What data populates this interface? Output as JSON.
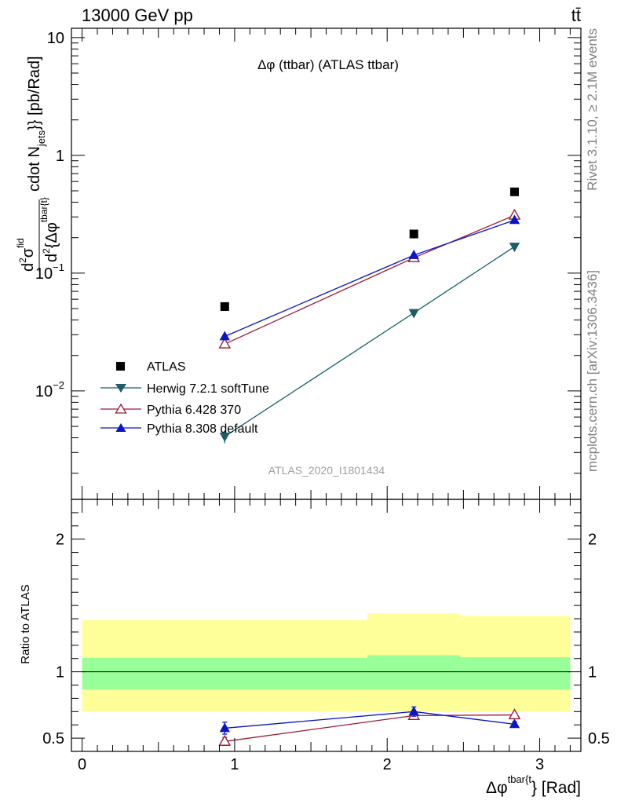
{
  "header": {
    "left": "13000 GeV pp",
    "right": "tt̄"
  },
  "side_labels": {
    "rivet": "Rivet 3.1.10, ≥ 2.1M events",
    "mcplots": "mcplots.cern.ch [arXiv:1306.3436]"
  },
  "watermark": "ATLAS_2020_I1801434",
  "chart_data": [
    {
      "type": "scatter",
      "panel": "main",
      "title": "Δφ (ttbar) (ATLAS ttbar)",
      "ylabel": {
        "d1": "d",
        "sup1": "2",
        "sigma": "σ",
        "sup2": "fid",
        "d2": "d",
        "sup3": "2",
        "den": "{Δφ",
        "sup4": "tbar{t}",
        "mid": "cdot N",
        "sub": "jets",
        "end": "}} [pb/Rad]"
      },
      "yscale": "log",
      "ylim": [
        0.0012,
        12
      ],
      "xlim": [
        -0.07,
        3.27
      ],
      "ytick_labels": [
        {
          "v": 10,
          "base": "10",
          "exp": ""
        },
        {
          "v": 1,
          "base": "1",
          "exp": ""
        },
        {
          "v": 0.1,
          "base": "10",
          "exp": "−1"
        },
        {
          "v": 0.01,
          "base": "10",
          "exp": "−2"
        }
      ],
      "legend": {
        "placement": "bottom-left"
      },
      "series": [
        {
          "name": "ATLAS",
          "color": "#000000",
          "marker": "square",
          "x": [
            0.935,
            2.175,
            2.835
          ],
          "y": [
            0.052,
            0.215,
            0.49
          ]
        },
        {
          "name": "Herwig 7.2.1 softTune",
          "color": "#1b5e66",
          "marker": "triangle-down",
          "x": [
            0.935,
            2.175,
            2.835
          ],
          "y": [
            0.0041,
            0.046,
            0.168
          ],
          "yerr": [
            0.0005,
            0.001,
            0.003
          ]
        },
        {
          "name": "Pythia 6.428 370",
          "color": "#9a1b36",
          "marker": "triangle-up-open",
          "x": [
            0.935,
            2.175,
            2.835
          ],
          "y": [
            0.025,
            0.135,
            0.31
          ]
        },
        {
          "name": "Pythia 8.308 default",
          "color": "#0a14c8",
          "marker": "triangle-up",
          "x": [
            0.935,
            2.175,
            2.835
          ],
          "y": [
            0.029,
            0.142,
            0.282
          ]
        }
      ]
    },
    {
      "type": "line",
      "panel": "ratio",
      "ylabel": "Ratio to ATLAS",
      "xlabel": {
        "main": "Δφ",
        "sup": "tbar{t",
        "end": "} [Rad]"
      },
      "ylim": [
        0.4,
        2.3
      ],
      "xlim": [
        -0.07,
        3.27
      ],
      "yticks": [
        0.5,
        1,
        2
      ],
      "ytick_labels": [
        "0.5",
        "1",
        "2"
      ],
      "xticks": [
        0,
        1,
        2,
        3
      ],
      "xtick_labels": [
        "0",
        "1",
        "2",
        "3"
      ],
      "bands": [
        {
          "x0": 0.0,
          "x1": 1.87,
          "outer": [
            0.7,
            1.39
          ],
          "inner": [
            0.865,
            1.105
          ]
        },
        {
          "x0": 1.87,
          "x1": 2.48,
          "outer": [
            0.7,
            1.44
          ],
          "inner": [
            0.865,
            1.125
          ]
        },
        {
          "x0": 2.48,
          "x1": 3.2,
          "outer": [
            0.7,
            1.42
          ],
          "inner": [
            0.865,
            1.11
          ]
        }
      ],
      "band_colors": {
        "outer": "#ffff99",
        "inner": "#99ff99"
      },
      "series": [
        {
          "name": "Pythia 6.428 370",
          "color": "#9a1b36",
          "marker": "triangle-up-open",
          "x": [
            0.935,
            2.175,
            2.835
          ],
          "y": [
            0.475,
            0.67,
            0.675
          ],
          "yerr": [
            0.03,
            0.02,
            0.01
          ]
        },
        {
          "name": "Pythia 8.308 default",
          "color": "#0a14c8",
          "marker": "triangle-up",
          "x": [
            0.935,
            2.175,
            2.835
          ],
          "y": [
            0.575,
            0.7,
            0.605
          ],
          "yerr": [
            0.045,
            0.035,
            0.02
          ]
        }
      ]
    }
  ]
}
